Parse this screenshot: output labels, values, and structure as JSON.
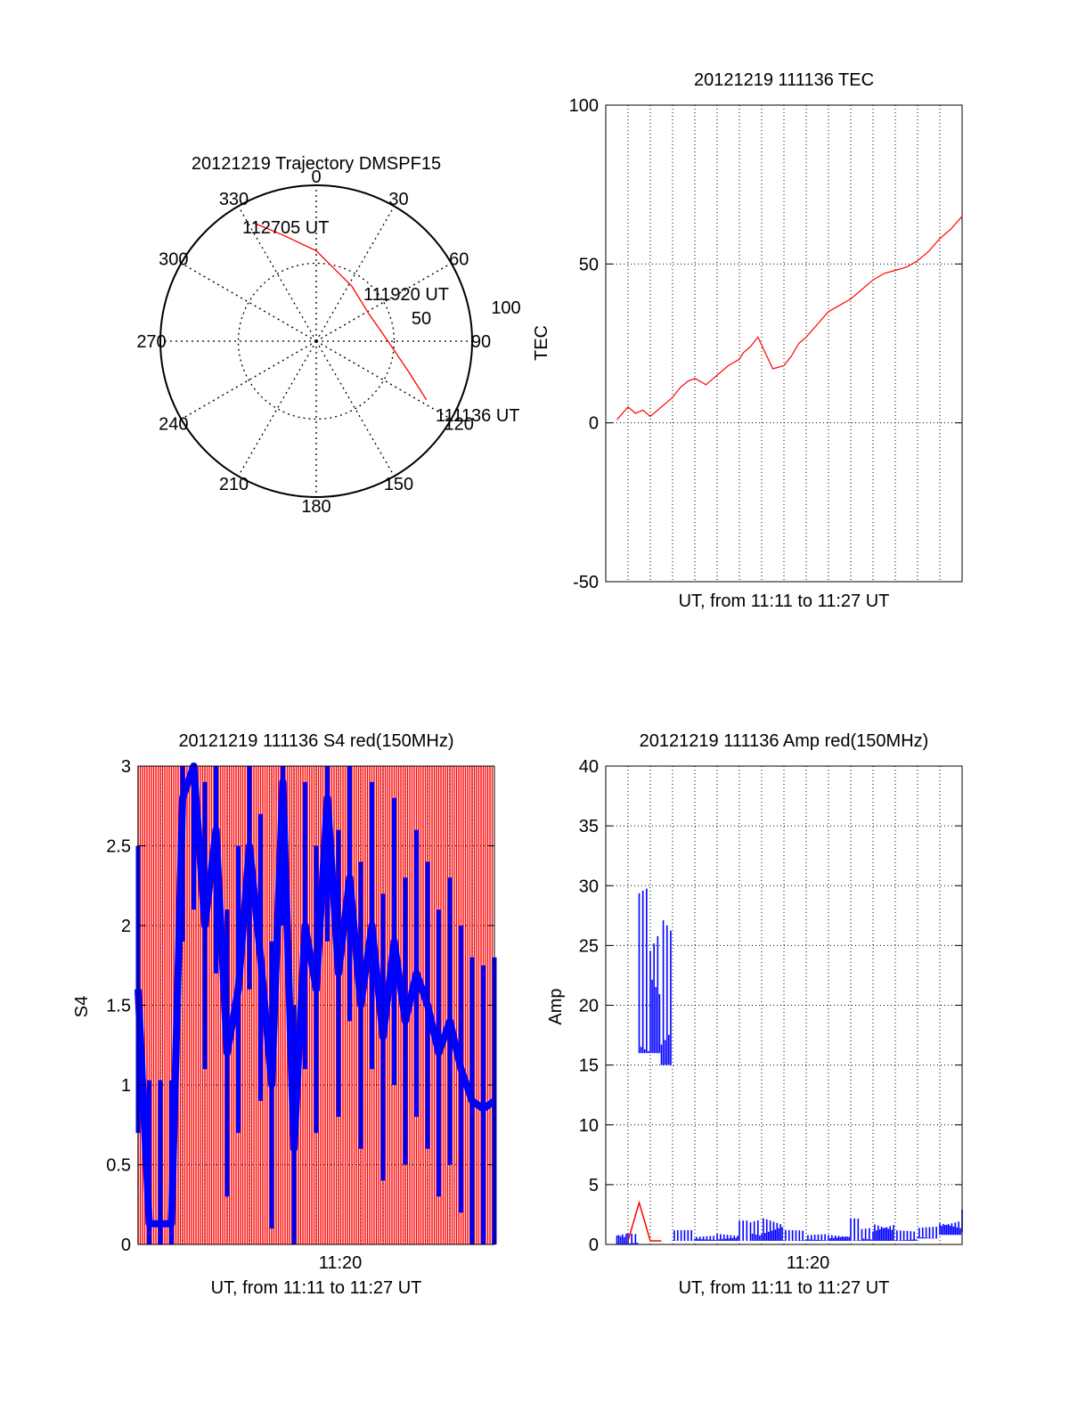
{
  "colors": {
    "red": "#ff0000",
    "blue": "#0000ff",
    "axis": "#000000",
    "grid": "#000000"
  },
  "chart_data": [
    {
      "id": "trajectory",
      "type": "polar",
      "title": "20121219 Trajectory DMSPF15",
      "azimuth_labels": [
        "0",
        "30",
        "60",
        "90",
        "120",
        "150",
        "180",
        "210",
        "240",
        "270",
        "300",
        "330"
      ],
      "ring_labels": [
        "50",
        "100"
      ],
      "rmax": 100,
      "grid": true,
      "series": [
        {
          "color": "#ff0000",
          "points": [
            {
              "az": 118,
              "zen": 80
            },
            {
              "az": 108,
              "zen": 62
            },
            {
              "az": 90,
              "zen": 46
            },
            {
              "az": 62,
              "zen": 38
            },
            {
              "az": 33,
              "zen": 42
            },
            {
              "az": 0,
              "zen": 58
            },
            {
              "az": -18,
              "zen": 72
            },
            {
              "az": -28,
              "zen": 86
            }
          ]
        }
      ],
      "annotations": [
        {
          "text": "112705 UT",
          "az": -28,
          "zen": 86
        },
        {
          "text": "111920 UT",
          "az": 62,
          "zen": 38
        },
        {
          "text": "111136 UT",
          "az": 118,
          "zen": 80
        }
      ]
    },
    {
      "id": "tec",
      "type": "line",
      "title": "20121219 111136 TEC",
      "ylabel": "TEC",
      "xlabel": "UT, from 11:11 to 11:27 UT",
      "xlim": [
        "11:11",
        "11:27"
      ],
      "ylim": [
        -50,
        100
      ],
      "yticks": [
        -50,
        0,
        50,
        100
      ],
      "grid": true,
      "series": [
        {
          "color": "#ff0000",
          "x": [
            "11:11:30",
            "11:12:00",
            "11:12:20",
            "11:12:40",
            "11:13:00",
            "11:13:30",
            "11:14:00",
            "11:14:20",
            "11:14:40",
            "11:15:00",
            "11:15:30",
            "11:16:00",
            "11:16:30",
            "11:17:00",
            "11:17:10",
            "11:17:30",
            "11:17:50",
            "11:18:30",
            "11:19:00",
            "11:19:20",
            "11:19:40",
            "11:20:00",
            "11:20:30",
            "11:21:00",
            "11:21:30",
            "11:22:00",
            "11:22:30",
            "11:23:00",
            "11:23:30",
            "11:24:00",
            "11:24:30",
            "11:25:00",
            "11:25:30",
            "11:26:00",
            "11:26:30",
            "11:27:00"
          ],
          "y": [
            1,
            5,
            3,
            4,
            2,
            5,
            8,
            11,
            13,
            14,
            12,
            15,
            18,
            20,
            22,
            24,
            27,
            17,
            18,
            21,
            25,
            27,
            31,
            35,
            37,
            39,
            42,
            45,
            47,
            48,
            49,
            51,
            54,
            58,
            61,
            65
          ]
        }
      ]
    },
    {
      "id": "s4",
      "type": "line",
      "title": "20121219 111136 S4 red(150MHz)",
      "ylabel": "S4",
      "xlabel": "UT, from 11:11 to 11:27 UT",
      "xtick_labels": [
        "11:20"
      ],
      "xlim": [
        "11:11",
        "11:27"
      ],
      "ylim": [
        0,
        3
      ],
      "yticks": [
        "0",
        "0.5",
        "1",
        "1.5",
        "2",
        "2.5",
        "3"
      ],
      "grid": true,
      "series": [
        {
          "color": "#ff0000",
          "x": [
            "11:11",
            "11:12",
            "11:13",
            "11:14",
            "11:15",
            "11:16",
            "11:17",
            "11:18",
            "11:19",
            "11:20",
            "11:21",
            "11:22",
            "11:23",
            "11:24",
            "11:25",
            "11:26",
            "11:27"
          ],
          "y": [
            2.5,
            1.8,
            2.9,
            2.6,
            2.2,
            2.8,
            1.5,
            2.9,
            2.4,
            2.7,
            2.9,
            2.3,
            2.8,
            2.6,
            2.9,
            2.5,
            2.9
          ]
        },
        {
          "color": "#0000ff",
          "x": [
            "11:11:00",
            "11:11:30",
            "11:12:00",
            "11:12:30",
            "11:13:00",
            "11:13:30",
            "11:14:00",
            "11:14:30",
            "11:15:00",
            "11:15:30",
            "11:16:00",
            "11:16:30",
            "11:17:00",
            "11:17:30",
            "11:18:00",
            "11:18:30",
            "11:19:00",
            "11:19:30",
            "11:20:00",
            "11:20:30",
            "11:21:00",
            "11:21:30",
            "11:22:00",
            "11:22:30",
            "11:23:00",
            "11:23:30",
            "11:24:00",
            "11:24:30",
            "11:25:00",
            "11:25:30",
            "11:26:00",
            "11:26:30",
            "11:27:00"
          ],
          "y": [
            1.6,
            0.13,
            0.13,
            0.13,
            2.8,
            3.0,
            2.0,
            2.6,
            1.2,
            1.6,
            2.5,
            1.8,
            1.0,
            2.9,
            0.6,
            2.0,
            1.6,
            2.8,
            1.7,
            2.3,
            1.5,
            2.0,
            1.3,
            1.9,
            1.4,
            1.7,
            1.5,
            1.2,
            1.4,
            1.1,
            0.9,
            0.85,
            0.9
          ]
        }
      ]
    },
    {
      "id": "amp",
      "type": "line",
      "title": "20121219 111136 Amp red(150MHz)",
      "ylabel": "Amp",
      "xlabel": "UT, from 11:11 to 11:27 UT",
      "xtick_labels": [
        "11:20"
      ],
      "xlim": [
        "11:11",
        "11:27"
      ],
      "ylim": [
        0,
        40
      ],
      "yticks": [
        0,
        5,
        10,
        15,
        20,
        25,
        30,
        35,
        40
      ],
      "grid": true,
      "series": [
        {
          "color": "#0000ff",
          "x": [
            "11:11:30",
            "11:12:00",
            "11:12:30",
            "11:13:00",
            "11:13:30",
            "11:14:00",
            "11:15:00",
            "11:16:00",
            "11:17:00",
            "11:17:30",
            "11:18:00",
            "11:19:00",
            "11:20:00",
            "11:21:00",
            "11:22:00",
            "11:22:30",
            "11:23:00",
            "11:24:00",
            "11:25:00",
            "11:26:00",
            "11:27:00"
          ],
          "y_min": [
            0,
            0,
            16,
            16,
            15,
            0.3,
            0.3,
            0.3,
            0.3,
            0.3,
            0.3,
            0.3,
            0.3,
            0.3,
            0.3,
            0.3,
            0.3,
            0.3,
            0.5,
            0.8,
            1.0
          ],
          "y_max": [
            1.5,
            1,
            30,
            31,
            29,
            1.2,
            0.8,
            1.0,
            2.0,
            2.5,
            2.8,
            1.2,
            0.9,
            1.0,
            2.2,
            1.5,
            2.5,
            1.2,
            1.5,
            2.5,
            3.0
          ]
        },
        {
          "color": "#ff0000",
          "x": [
            "11:12:00",
            "11:12:30",
            "11:13:00",
            "11:13:30"
          ],
          "y": [
            0.3,
            3.5,
            0.3,
            0.3
          ]
        }
      ]
    }
  ]
}
